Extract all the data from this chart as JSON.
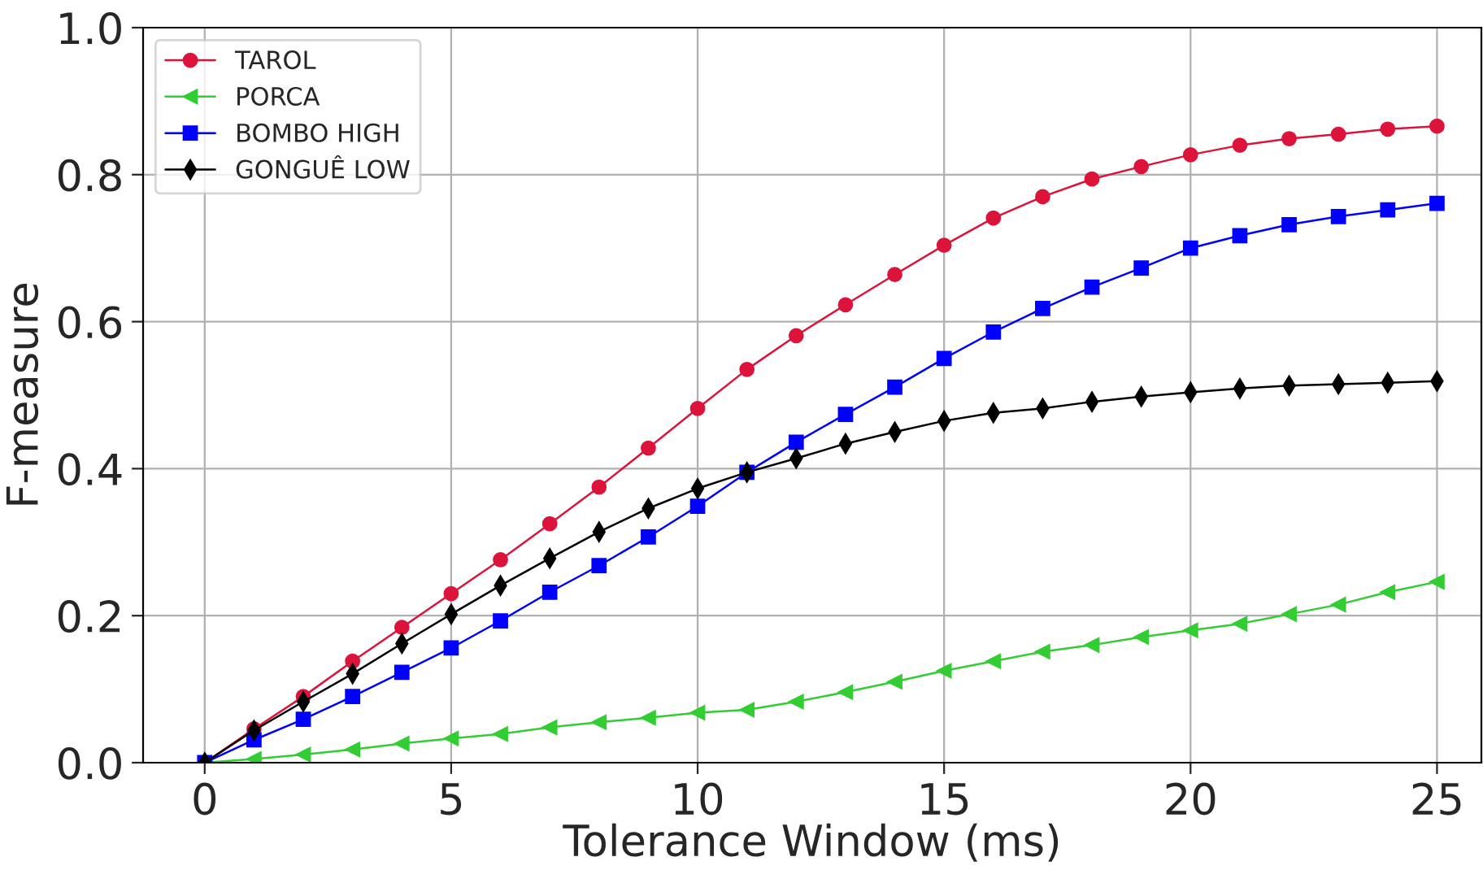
{
  "chart_data": {
    "type": "line",
    "xlabel": "Tolerance Window (ms)",
    "ylabel": "F-measure",
    "x": [
      0,
      1,
      2,
      3,
      4,
      5,
      6,
      7,
      8,
      9,
      10,
      11,
      12,
      13,
      14,
      15,
      16,
      17,
      18,
      19,
      20,
      21,
      22,
      23,
      24,
      25
    ],
    "series": [
      {
        "name": "TAROL",
        "color": "#dc143c",
        "marker": "circle",
        "values": [
          0,
          0.046,
          0.09,
          0.138,
          0.184,
          0.23,
          0.276,
          0.325,
          0.375,
          0.428,
          0.482,
          0.535,
          0.581,
          0.623,
          0.664,
          0.704,
          0.741,
          0.77,
          0.794,
          0.811,
          0.827,
          0.84,
          0.849,
          0.855,
          0.862,
          0.866
        ]
      },
      {
        "name": "PORCA",
        "color": "#32cd32",
        "marker": "triangle",
        "values": [
          0,
          0.005,
          0.011,
          0.018,
          0.026,
          0.033,
          0.039,
          0.048,
          0.055,
          0.061,
          0.068,
          0.072,
          0.083,
          0.096,
          0.11,
          0.125,
          0.138,
          0.151,
          0.16,
          0.171,
          0.18,
          0.189,
          0.202,
          0.215,
          0.232,
          0.246
        ]
      },
      {
        "name": "BOMBO HIGH",
        "color": "#0000ff",
        "marker": "square",
        "values": [
          0,
          0.031,
          0.059,
          0.09,
          0.123,
          0.156,
          0.193,
          0.232,
          0.268,
          0.307,
          0.349,
          0.395,
          0.436,
          0.474,
          0.511,
          0.55,
          0.586,
          0.618,
          0.647,
          0.673,
          0.7,
          0.717,
          0.732,
          0.743,
          0.752,
          0.761
        ]
      },
      {
        "name": "GONGUÊ LOW",
        "color": "#000000",
        "marker": "diamond",
        "values": [
          0,
          0.044,
          0.083,
          0.121,
          0.162,
          0.202,
          0.241,
          0.278,
          0.314,
          0.346,
          0.373,
          0.395,
          0.414,
          0.434,
          0.45,
          0.465,
          0.476,
          0.482,
          0.491,
          0.498,
          0.504,
          0.509,
          0.513,
          0.515,
          0.517,
          0.519
        ]
      }
    ],
    "xlim": [
      -1.25,
      25.9
    ],
    "ylim": [
      0,
      1.0
    ],
    "xticks": [
      0,
      5,
      10,
      15,
      20,
      25
    ],
    "yticks": [
      {
        "value": 0,
        "label": "0.0"
      },
      {
        "value": 0.2,
        "label": "0.2"
      },
      {
        "value": 0.4,
        "label": "0.4"
      },
      {
        "value": 0.6,
        "label": "0.6"
      },
      {
        "value": 0.8,
        "label": "0.8"
      },
      {
        "value": 1.0,
        "label": "1.0"
      }
    ],
    "grid": true,
    "legend": "top left",
    "line_style": "solid"
  }
}
